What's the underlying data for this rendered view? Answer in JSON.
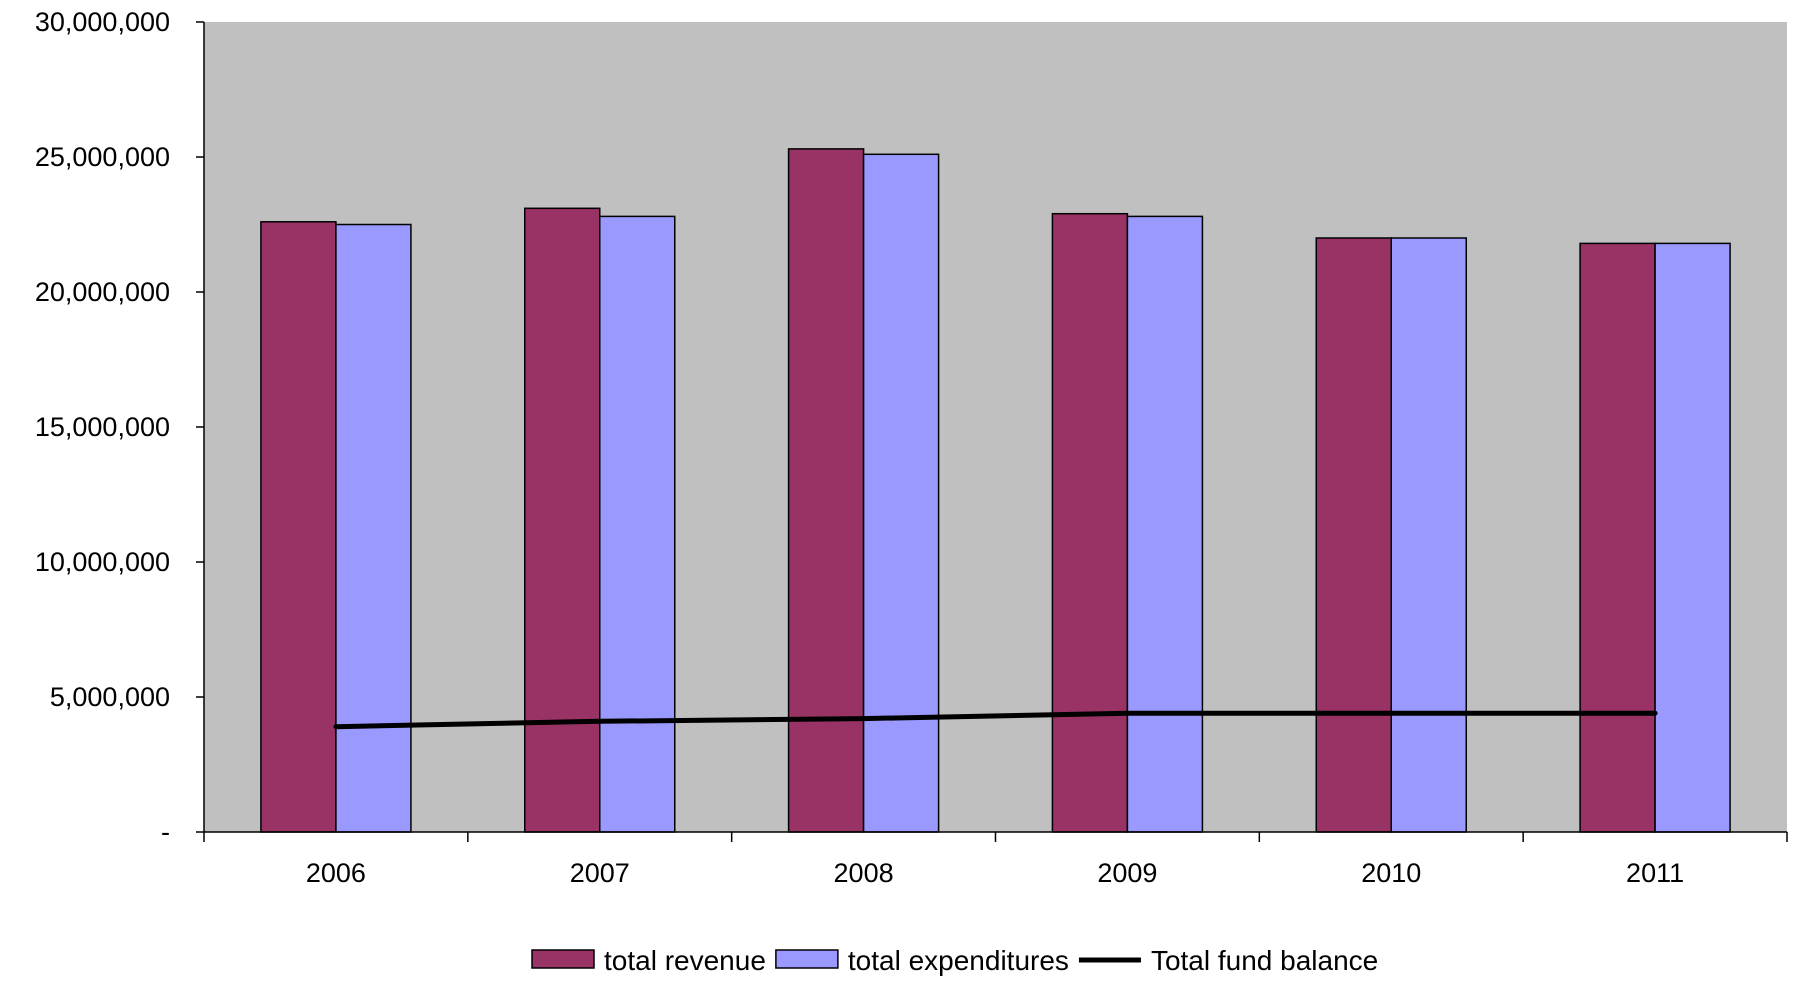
{
  "chart_data": {
    "type": "bar",
    "categories": [
      "2006",
      "2007",
      "2008",
      "2009",
      "2010",
      "2011"
    ],
    "series": [
      {
        "name": "total revenue",
        "type": "bar",
        "color": "#993366",
        "values": [
          22600000,
          23100000,
          25300000,
          22900000,
          22000000,
          21800000
        ]
      },
      {
        "name": "total expenditures",
        "type": "bar",
        "color": "#9999ff",
        "values": [
          22500000,
          22800000,
          25100000,
          22800000,
          22000000,
          21800000
        ]
      },
      {
        "name": "Total fund balance",
        "type": "line",
        "color": "#000000",
        "values": [
          3900000,
          4100000,
          4200000,
          4400000,
          4400000,
          4400000
        ]
      }
    ],
    "ylim": [
      0,
      30000000
    ],
    "yticks": [
      0,
      5000000,
      10000000,
      15000000,
      20000000,
      25000000,
      30000000
    ],
    "ytick_labels": [
      "-",
      "5,000,000",
      "10,000,000",
      "15,000,000",
      "20,000,000",
      "25,000,000",
      "30,000,000"
    ],
    "plot_background": "#c0c0c0",
    "grid": false,
    "legend_position": "bottom-center",
    "title": "",
    "xlabel": "",
    "ylabel": ""
  }
}
